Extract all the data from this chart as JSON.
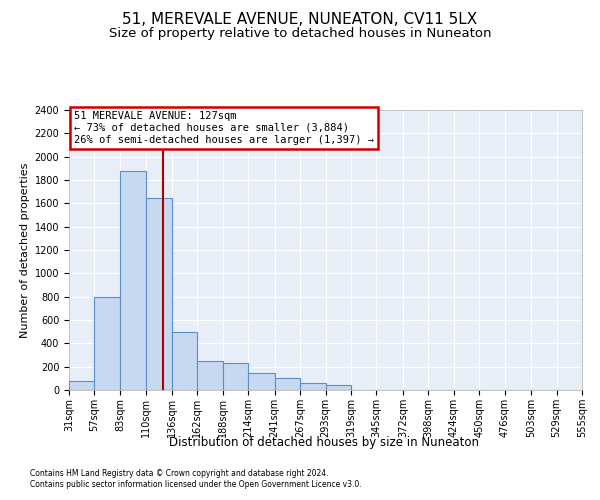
{
  "title": "51, MEREVALE AVENUE, NUNEATON, CV11 5LX",
  "subtitle": "Size of property relative to detached houses in Nuneaton",
  "xlabel": "Distribution of detached houses by size in Nuneaton",
  "ylabel": "Number of detached properties",
  "footer_line1": "Contains HM Land Registry data © Crown copyright and database right 2024.",
  "footer_line2": "Contains public sector information licensed under the Open Government Licence v3.0.",
  "bin_edges": [
    31,
    57,
    83,
    110,
    136,
    162,
    188,
    214,
    241,
    267,
    293,
    319,
    345,
    372,
    398,
    424,
    450,
    476,
    503,
    529,
    555
  ],
  "bar_heights": [
    75,
    800,
    1880,
    1650,
    500,
    250,
    230,
    150,
    100,
    60,
    40,
    0,
    0,
    0,
    0,
    0,
    0,
    0,
    0,
    0
  ],
  "bar_color": "#c6d9f0",
  "bar_edge_color": "#5b8fc9",
  "property_size": 127,
  "annotation_line1": "51 MEREVALE AVENUE: 127sqm",
  "annotation_line2": "← 73% of detached houses are smaller (3,884)",
  "annotation_line3": "26% of semi-detached houses are larger (1,397) →",
  "annotation_box_facecolor": "#ffffff",
  "annotation_box_edgecolor": "#cc0000",
  "vline_color": "#aa0000",
  "ylim": [
    0,
    2400
  ],
  "yticks": [
    0,
    200,
    400,
    600,
    800,
    1000,
    1200,
    1400,
    1600,
    1800,
    2000,
    2200,
    2400
  ],
  "fig_facecolor": "#ffffff",
  "plot_facecolor": "#e8eef8",
  "title_fontsize": 11,
  "subtitle_fontsize": 9.5,
  "ylabel_fontsize": 8,
  "xlabel_fontsize": 8.5,
  "tick_fontsize": 7,
  "annotation_fontsize": 7.5,
  "footer_fontsize": 5.5
}
